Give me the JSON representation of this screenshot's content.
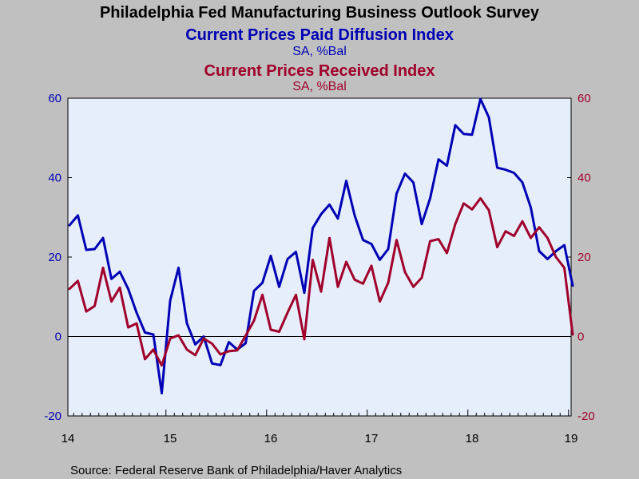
{
  "chart_data": {
    "type": "line",
    "title": "Philadelphia Fed Manufacturing Business Outlook Survey",
    "series": [
      {
        "name": "Current Prices Paid Diffusion Index",
        "units": "SA, %Bal",
        "color": "#0000b4",
        "axis": "left",
        "values": [
          28.0,
          30.5,
          21.8,
          22.0,
          24.8,
          14.5,
          16.3,
          12.0,
          6.0,
          1.0,
          0.5,
          -14.3,
          9.0,
          17.3,
          3.3,
          -2.0,
          0.0,
          -6.8,
          -7.2,
          -1.4,
          -3.3,
          -1.7,
          11.5,
          13.5,
          20.3,
          12.5,
          19.5,
          21.3,
          11.0,
          27.3,
          30.8,
          33.2,
          29.7,
          39.2,
          30.5,
          24.3,
          23.3,
          19.3,
          22.0,
          36.0,
          41.0,
          38.8,
          28.3,
          34.8,
          44.6,
          43.0,
          53.2,
          51.0,
          50.8,
          59.8,
          55.2,
          42.5,
          42.0,
          41.2,
          38.8,
          32.5,
          21.5,
          19.5,
          21.5,
          23.0,
          12.8
        ]
      },
      {
        "name": "Current Prices Received Index",
        "units": "SA, %Bal",
        "color": "#a0002a",
        "axis": "right",
        "values": [
          12.0,
          14.0,
          6.3,
          7.7,
          17.3,
          8.8,
          12.3,
          2.3,
          3.3,
          -5.7,
          -3.3,
          -7.3,
          -0.5,
          0.3,
          -3.3,
          -4.7,
          -0.5,
          -1.8,
          -4.5,
          -3.7,
          -3.5,
          0.2,
          4.0,
          10.5,
          1.7,
          1.2,
          6.0,
          10.5,
          -0.7,
          19.3,
          11.3,
          24.8,
          12.5,
          18.8,
          14.3,
          13.3,
          17.8,
          8.8,
          13.5,
          24.3,
          16.2,
          12.5,
          14.8,
          24.0,
          24.5,
          21.0,
          28.3,
          33.5,
          32.0,
          34.8,
          31.8,
          22.5,
          26.5,
          25.3,
          29.0,
          24.8,
          27.5,
          24.8,
          20.0,
          17.3,
          0.5
        ]
      }
    ],
    "x_labels": [
      "14",
      "15",
      "16",
      "17",
      "18",
      "19"
    ],
    "y_left": {
      "ticks": [
        "60",
        "40",
        "20",
        "0",
        "-20"
      ],
      "ylim": [
        -20,
        60
      ],
      "color": "#0000b4"
    },
    "y_right": {
      "ticks": [
        "60",
        "40",
        "20",
        "0",
        "-20"
      ],
      "ylim": [
        -20,
        60
      ],
      "color": "#a0002a"
    },
    "subtitle_blue": "Current Prices Paid Diffusion Index",
    "units_blue": "SA, %Bal",
    "subtitle_red": "Current Prices Received Index",
    "units_red": "SA, %Bal",
    "source": "Source:  Federal Reserve Bank of Philadelphia/Haver Analytics",
    "plot_bg": "#e6eefc",
    "page_bg": "#c0c0c0"
  }
}
